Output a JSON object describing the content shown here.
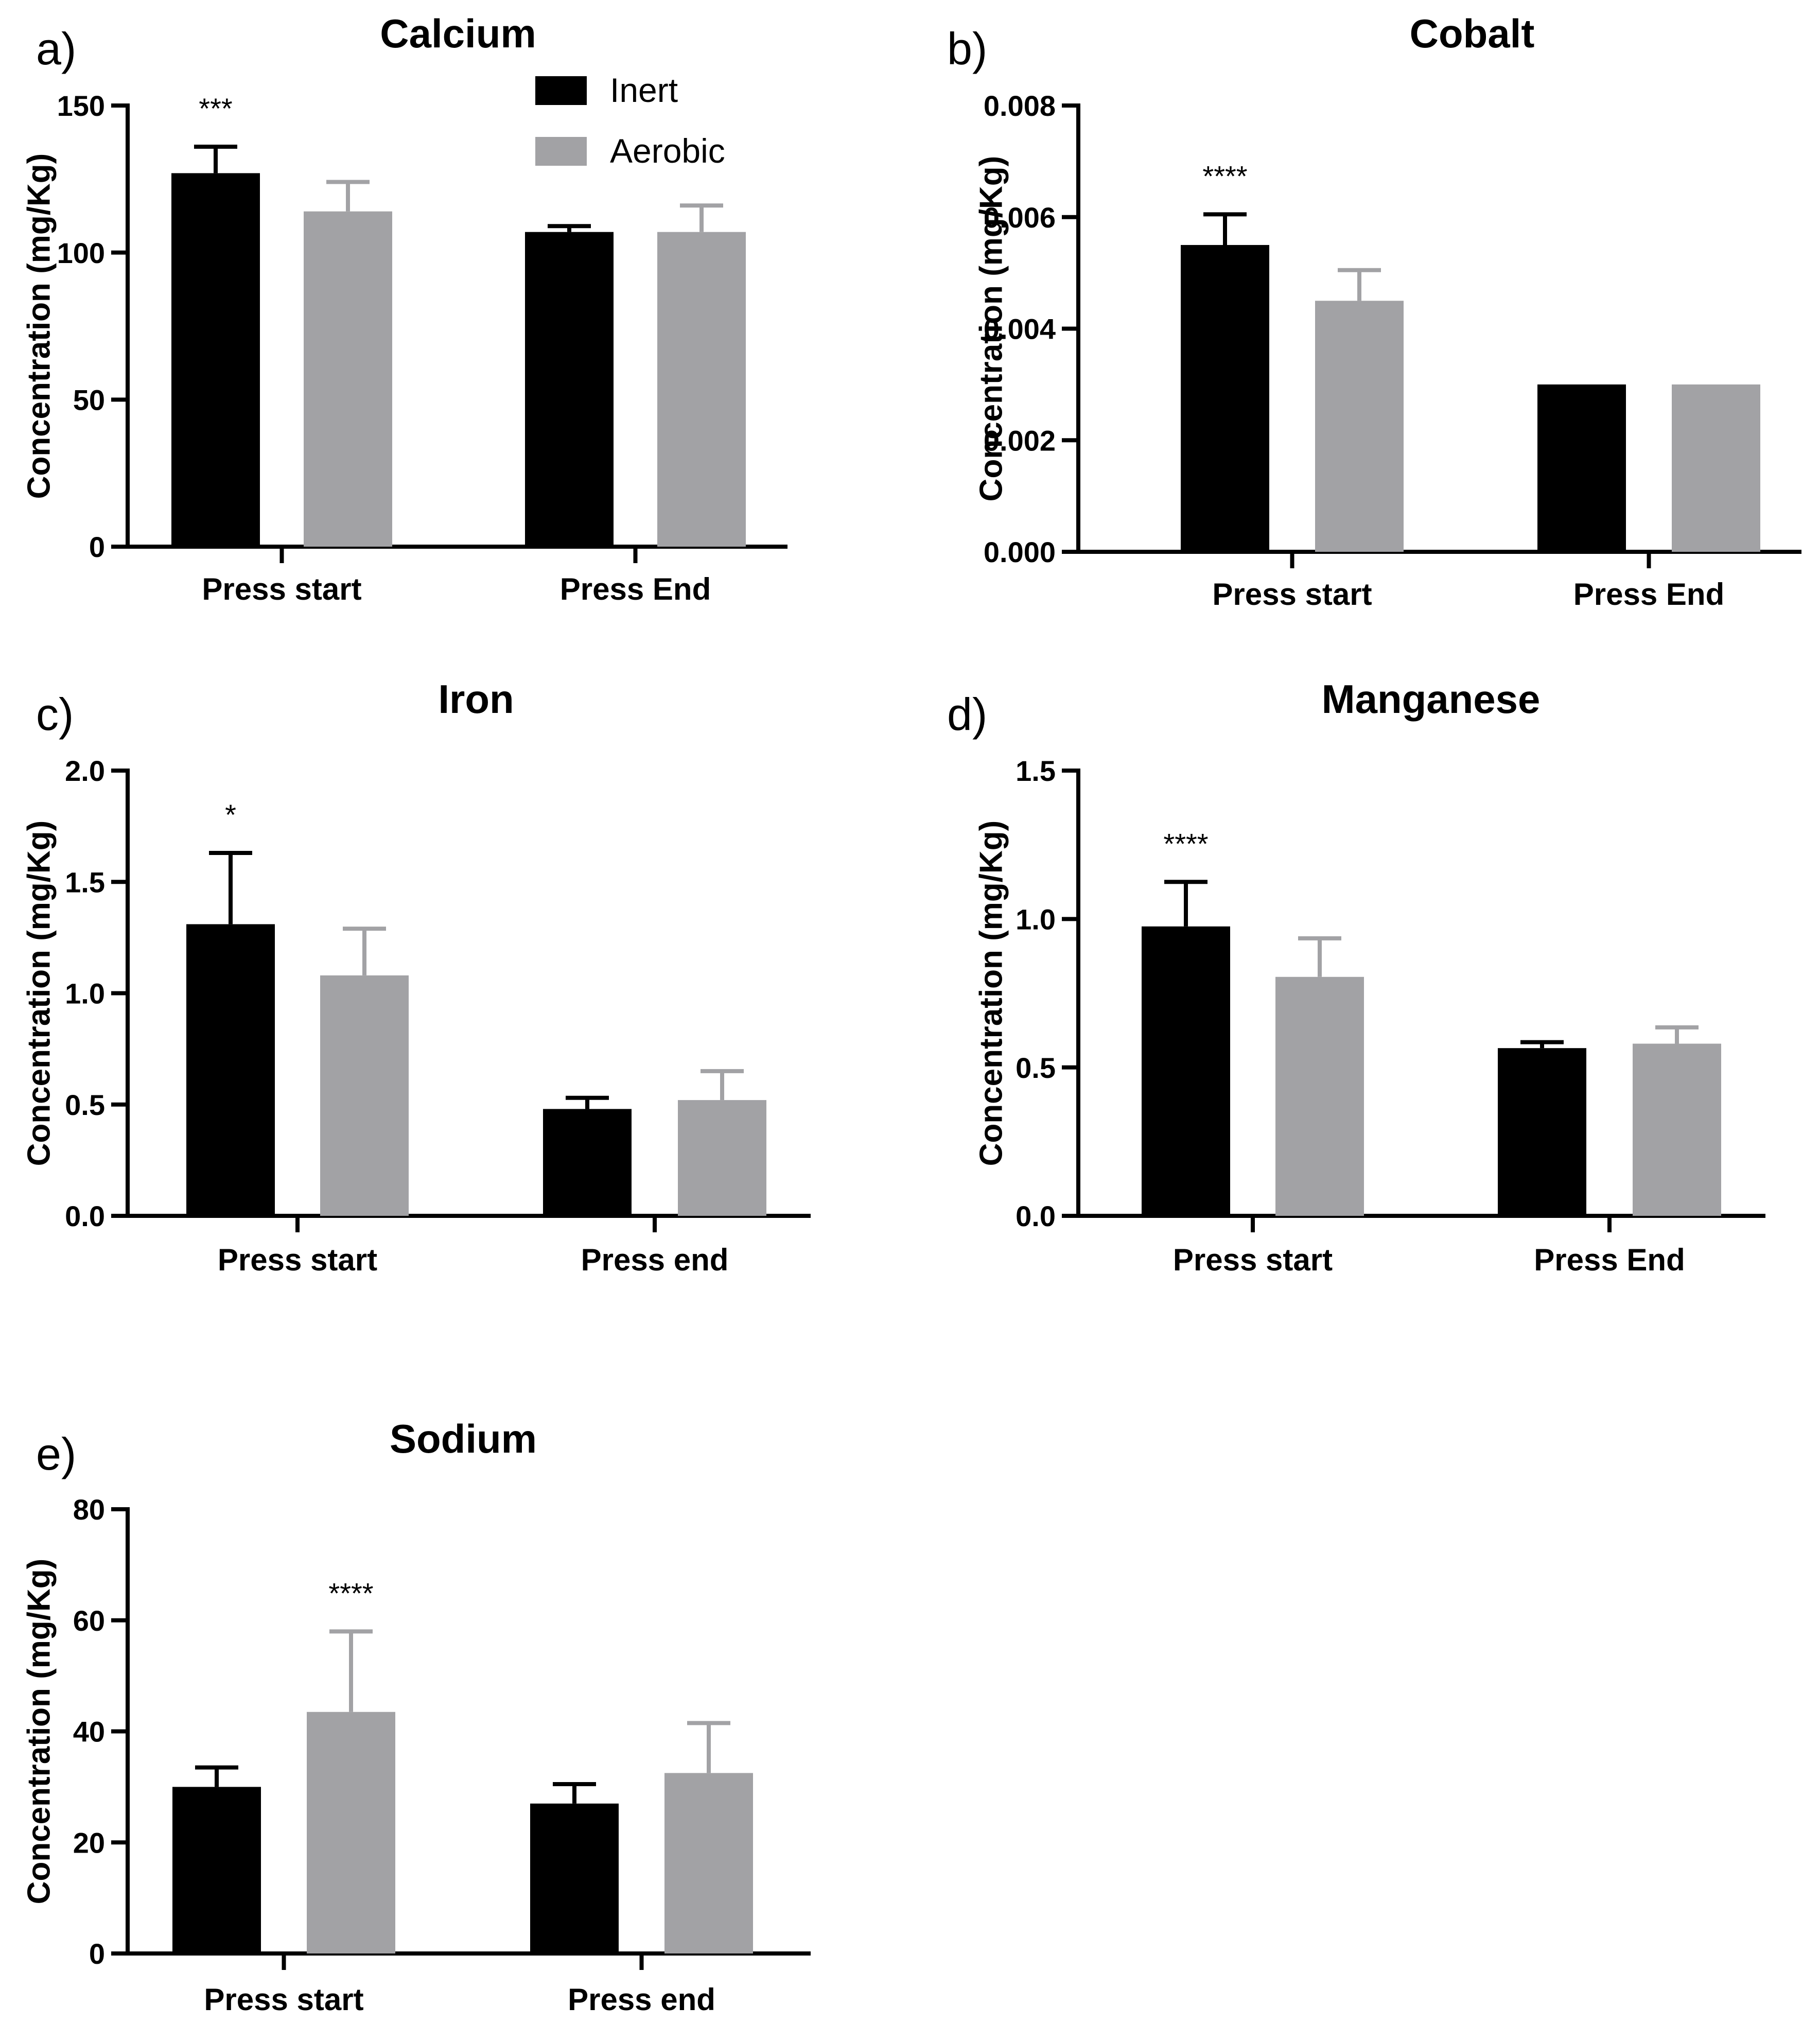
{
  "legend": {
    "placement": "top-right of panel a",
    "entries": [
      {
        "name": "Inert",
        "color": "#000000"
      },
      {
        "name": "Aerobic",
        "color": "#a2a2a5"
      }
    ]
  },
  "chart_data": [
    {
      "type": "bar",
      "panel_label": "a)",
      "title": "Calcium",
      "ylabel": "Concentration (mg/Kg)",
      "categories": [
        "Press start",
        "Press End"
      ],
      "ylim": [
        0,
        150
      ],
      "yticks": [
        0,
        50,
        100,
        150
      ],
      "ytick_labels": [
        "0",
        "50",
        "100",
        "150"
      ],
      "series": [
        {
          "name": "Inert",
          "values": [
            127,
            107
          ],
          "errors": [
            9,
            2
          ]
        },
        {
          "name": "Aerobic",
          "values": [
            114,
            107
          ],
          "errors": [
            10,
            9
          ]
        }
      ],
      "annotations": [
        {
          "category": 0,
          "series": 0,
          "text": "***"
        }
      ]
    },
    {
      "type": "bar",
      "panel_label": "b)",
      "title": "Cobalt",
      "ylabel": "Concentration (mg/Kg)",
      "categories": [
        "Press start",
        "Press End"
      ],
      "ylim": [
        0,
        0.008
      ],
      "yticks": [
        0,
        0.002,
        0.004,
        0.006,
        0.008
      ],
      "ytick_labels": [
        "0.000",
        "0.002",
        "0.004",
        "0.006",
        "0.008"
      ],
      "series": [
        {
          "name": "Inert",
          "values": [
            0.0055,
            0.003
          ],
          "errors": [
            0.00055,
            0
          ]
        },
        {
          "name": "Aerobic",
          "values": [
            0.0045,
            0.003
          ],
          "errors": [
            0.00055,
            0
          ]
        }
      ],
      "annotations": [
        {
          "category": 0,
          "series": 0,
          "text": "****"
        }
      ]
    },
    {
      "type": "bar",
      "panel_label": "c)",
      "title": "Iron",
      "ylabel": "Concentration (mg/Kg)",
      "categories": [
        "Press start",
        "Press end"
      ],
      "ylim": [
        0,
        2.0
      ],
      "yticks": [
        0,
        0.5,
        1.0,
        1.5,
        2.0
      ],
      "ytick_labels": [
        "0.0",
        "0.5",
        "1.0",
        "1.5",
        "2.0"
      ],
      "series": [
        {
          "name": "Inert",
          "values": [
            1.31,
            0.48
          ],
          "errors": [
            0.32,
            0.05
          ]
        },
        {
          "name": "Aerobic",
          "values": [
            1.08,
            0.52
          ],
          "errors": [
            0.21,
            0.13
          ]
        }
      ],
      "annotations": [
        {
          "category": 0,
          "series": 0,
          "text": "*"
        }
      ]
    },
    {
      "type": "bar",
      "panel_label": "d)",
      "title": "Manganese",
      "ylabel": "Concentration (mg/Kg)",
      "categories": [
        "Press start",
        "Press End"
      ],
      "ylim": [
        0,
        1.5
      ],
      "yticks": [
        0,
        0.5,
        1.0,
        1.5
      ],
      "ytick_labels": [
        "0.0",
        "0.5",
        "1.0",
        "1.5"
      ],
      "series": [
        {
          "name": "Inert",
          "values": [
            0.975,
            0.565
          ],
          "errors": [
            0.15,
            0.02
          ]
        },
        {
          "name": "Aerobic",
          "values": [
            0.805,
            0.58
          ],
          "errors": [
            0.13,
            0.055
          ]
        }
      ],
      "annotations": [
        {
          "category": 0,
          "series": 0,
          "text": "****"
        }
      ]
    },
    {
      "type": "bar",
      "panel_label": "e)",
      "title": "Sodium",
      "ylabel": "Concentration (mg/Kg)",
      "categories": [
        "Press start",
        "Press end"
      ],
      "ylim": [
        0,
        80
      ],
      "yticks": [
        0,
        20,
        40,
        60,
        80
      ],
      "ytick_labels": [
        "0",
        "20",
        "40",
        "60",
        "80"
      ],
      "series": [
        {
          "name": "Inert",
          "values": [
            30,
            27
          ],
          "errors": [
            3.5,
            3.5
          ]
        },
        {
          "name": "Aerobic",
          "values": [
            43.5,
            32.5
          ],
          "errors": [
            14.5,
            9
          ]
        }
      ],
      "annotations": [
        {
          "category": 0,
          "series": 1,
          "text": "****"
        }
      ]
    }
  ]
}
